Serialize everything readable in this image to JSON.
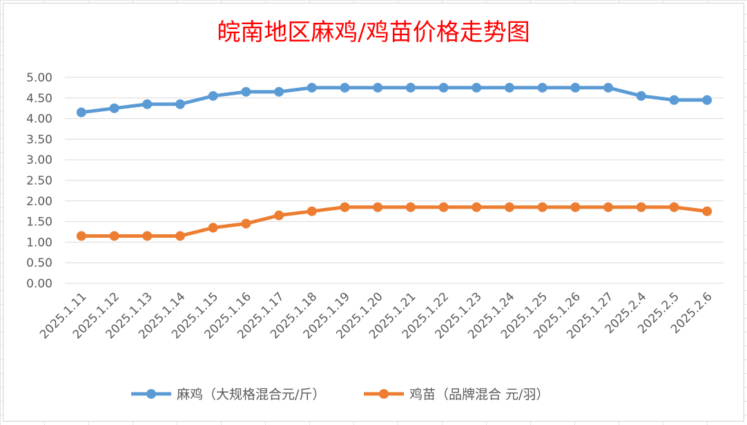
{
  "chart_data": {
    "type": "line",
    "title": "皖南地区麻鸡/鸡苗价格走势图",
    "xlabel": "",
    "ylabel": "",
    "categories": [
      "2025.1.11",
      "2025.1.12",
      "2025.1.13",
      "2025.1.14",
      "2025.1.15",
      "2025.1.16",
      "2025.1.17",
      "2025.1.18",
      "2025.1.19",
      "2025.1.20",
      "2025.1.21",
      "2025.1.22",
      "2025.1.23",
      "2025.1.24",
      "2025.1.25",
      "2025.1.26",
      "2025.1.27",
      "2025.2.4",
      "2025.2.5",
      "2025.2.6"
    ],
    "ylim": [
      0,
      5
    ],
    "yticks": [
      "0.00",
      "0.50",
      "1.00",
      "1.50",
      "2.00",
      "2.50",
      "3.00",
      "3.50",
      "4.00",
      "4.50",
      "5.00"
    ],
    "grid": "horizontal",
    "legend_position": "bottom",
    "series": [
      {
        "name": "麻鸡（大规格混合元/斤）",
        "color": "#5b9bd5",
        "values": [
          4.15,
          4.25,
          4.35,
          4.35,
          4.55,
          4.65,
          4.65,
          4.75,
          4.75,
          4.75,
          4.75,
          4.75,
          4.75,
          4.75,
          4.75,
          4.75,
          4.75,
          4.55,
          4.45,
          4.45
        ]
      },
      {
        "name": "鸡苗（品牌混合 元/羽）",
        "color": "#ed7d31",
        "values": [
          1.15,
          1.15,
          1.15,
          1.15,
          1.35,
          1.45,
          1.65,
          1.75,
          1.85,
          1.85,
          1.85,
          1.85,
          1.85,
          1.85,
          1.85,
          1.85,
          1.85,
          1.85,
          1.85,
          1.75
        ]
      }
    ]
  }
}
